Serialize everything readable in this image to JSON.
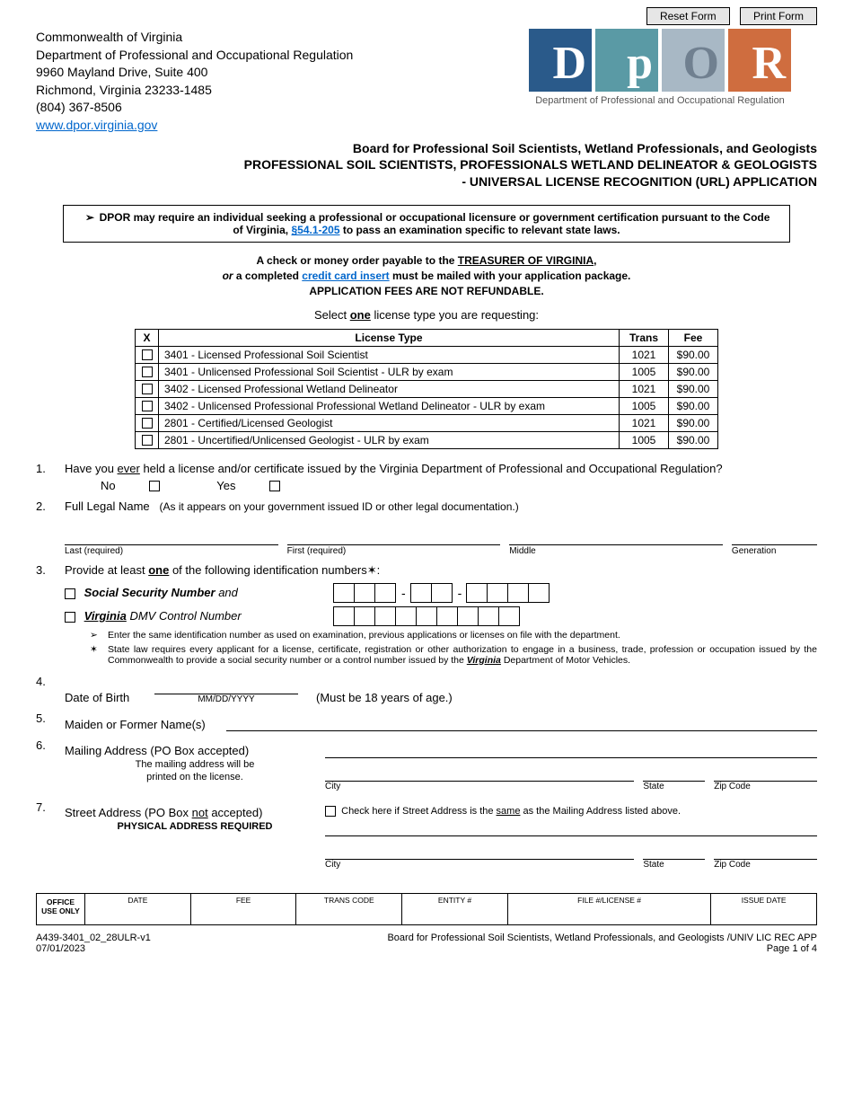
{
  "buttons": {
    "reset": "Reset Form",
    "print": "Print Form"
  },
  "agency": {
    "line1": "Commonwealth of Virginia",
    "line2": "Department of Professional and Occupational Regulation",
    "line3": "9960 Mayland Drive, Suite 400",
    "line4": "Richmond, Virginia 23233-1485",
    "phone": "(804) 367-8506",
    "url": "www.dpor.virginia.gov"
  },
  "logo": {
    "d": "D",
    "p": "p",
    "o": "O",
    "r": "R",
    "caption": "Department of Professional and Occupational Regulation"
  },
  "title": {
    "board": "Board for Professional Soil Scientists, Wetland Professionals, and Geologists",
    "line2": "PROFESSIONAL SOIL SCIENTISTS, PROFESSIONALS WETLAND DELINEATOR & GEOLOGISTS",
    "line3": "- UNIVERSAL LICENSE RECOGNITION (URL) APPLICATION"
  },
  "notice": {
    "pre": "DPOR may require an individual seeking a professional or occupational licensure or government certification pursuant to the Code of Virginia, ",
    "link": "§54.1-205",
    "post": " to pass an examination specific to relevant state laws."
  },
  "fee_note": {
    "l1a": "A check or money order payable to the ",
    "l1b": "TREASURER OF VIRGINIA",
    "l1c": ",",
    "l2a": "or",
    "l2b": " a completed ",
    "l2link": "credit card insert",
    "l2c": " must be mailed with your application package.",
    "l3": "APPLICATION FEES ARE NOT REFUNDABLE."
  },
  "select_prompt_a": "Select ",
  "select_prompt_b": "one",
  "select_prompt_c": " license type you are requesting:",
  "table": {
    "h_x": "X",
    "h_type": "License Type",
    "h_trans": "Trans",
    "h_fee": "Fee",
    "rows": [
      {
        "type": "3401 - Licensed Professional Soil Scientist",
        "trans": "1021",
        "fee": "$90.00"
      },
      {
        "type": "3401 - Unlicensed Professional Soil Scientist - ULR by exam",
        "trans": "1005",
        "fee": "$90.00"
      },
      {
        "type": "3402 - Licensed Professional Wetland Delineator",
        "trans": "1021",
        "fee": "$90.00"
      },
      {
        "type": "3402 - Unlicensed Professional Professional Wetland Delineator - ULR by exam",
        "trans": "1005",
        "fee": "$90.00"
      },
      {
        "type": "2801 - Certified/Licensed Geologist",
        "trans": "1021",
        "fee": "$90.00"
      },
      {
        "type": "2801 - Uncertified/Unlicensed Geologist - ULR by exam",
        "trans": "1005",
        "fee": "$90.00"
      }
    ]
  },
  "q1": {
    "num": "1.",
    "text_a": "Have you ",
    "text_u": "ever",
    "text_b": " held a license and/or certificate issued by the Virginia Department of Professional and Occupational Regulation?",
    "no": "No",
    "yes": "Yes"
  },
  "q2": {
    "num": "2.",
    "label": "Full Legal Name",
    "hint": "(As it appears on your government issued ID or other legal documentation.)",
    "last": "Last  (required)",
    "first": "First  (required)",
    "middle": "Middle",
    "gen": "Generation"
  },
  "q3": {
    "num": "3.",
    "text_a": "Provide at least ",
    "text_u": "one",
    "text_b": " of the following identification numbers",
    "ssn_a": "Social Security Number",
    "ssn_b": "  and",
    "dmv_a": "Virginia",
    "dmv_b": " DMV Control Number",
    "note1": "Enter the same identification number as used on examination, previous applications or licenses on file with the department.",
    "note2_a": "State law requires every applicant for a license, certificate, registration or other authorization to engage in a business, trade, profession or occupation issued by the Commonwealth to provide a social security number or a control number issued by the ",
    "note2_u": "Virginia",
    "note2_b": " Department of Motor Vehicles."
  },
  "q4": {
    "num": "4.",
    "label": "Date of Birth",
    "fmt": "MM/DD/YYYY",
    "hint": "(Must be 18 years of age.)"
  },
  "q5": {
    "num": "5.",
    "label": "Maiden or Former Name(s)"
  },
  "q6": {
    "num": "6.",
    "label": "Mailing Address (PO Box accepted)",
    "sub1": "The mailing address will be",
    "sub2": "printed on the license.",
    "city": "City",
    "state": "State",
    "zip": "Zip Code"
  },
  "q7": {
    "num": "7.",
    "label_a": "Street Address (PO Box ",
    "label_u": "not",
    "label_b": " accepted)",
    "sub": "PHYSICAL ADDRESS REQUIRED",
    "same_a": "Check here if Street Address is the ",
    "same_u": "same",
    "same_b": " as the Mailing Address listed above.",
    "city": "City",
    "state": "State",
    "zip": "Zip Code"
  },
  "office": {
    "label": "OFFICE USE ONLY",
    "cols": [
      "DATE",
      "FEE",
      "TRANS CODE",
      "ENTITY #",
      "FILE #/LICENSE #",
      "ISSUE DATE"
    ]
  },
  "footer": {
    "left1": "A439-3401_02_28ULR-v1",
    "left2": "07/01/2023",
    "right1": "Board for Professional Soil Scientists, Wetland Professionals, and Geologists /UNIV LIC REC APP",
    "right2": "Page 1 of 4"
  }
}
